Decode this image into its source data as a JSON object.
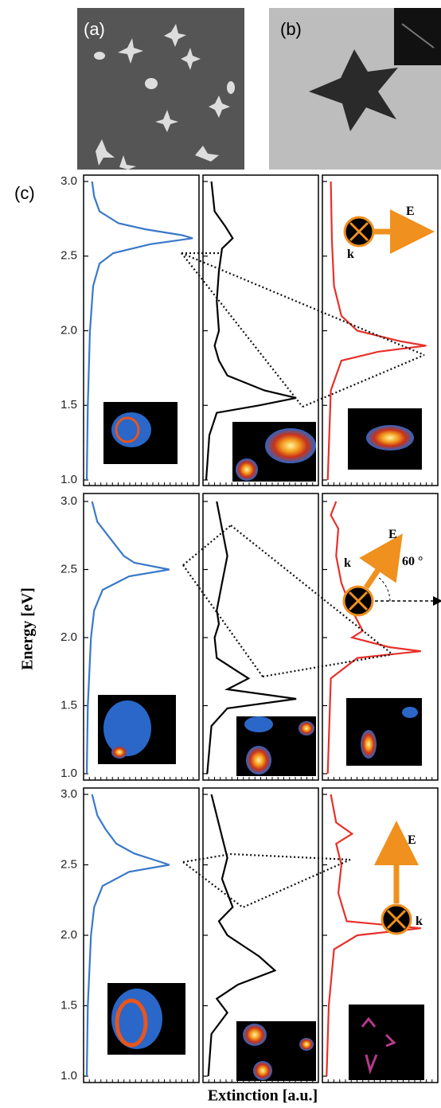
{
  "panel_labels": [
    "(a)",
    "(b)",
    "(c)"
  ],
  "chart_data": {
    "type": "line",
    "xlabel": "Extinction [a.u.]",
    "ylabel": "Energy [eV]",
    "xlim": [
      0,
      1
    ],
    "ylim": [
      1,
      3
    ],
    "yticks": [
      {
        "value": 3,
        "label": "3.0"
      },
      {
        "value": 2.5,
        "label": "2.5"
      },
      {
        "value": 2,
        "label": "2.0"
      },
      {
        "value": 1.5,
        "label": "1.5"
      },
      {
        "value": 1,
        "label": "1.0"
      }
    ],
    "rows": [
      {
        "annotations": [
          "E",
          "k"
        ],
        "panels": [
          {
            "color": "#3a78c9",
            "energy": [
              3.0,
              2.9,
              2.8,
              2.72,
              2.68,
              2.64,
              2.62,
              2.58,
              2.52,
              2.45,
              2.3,
              2.0,
              1.5,
              1.0
            ],
            "extinction": [
              0.05,
              0.07,
              0.12,
              0.3,
              0.55,
              0.9,
              1.0,
              0.6,
              0.25,
              0.12,
              0.06,
              0.03,
              0.01,
              0.0
            ]
          },
          {
            "color": "#000000",
            "energy": [
              3.0,
              2.8,
              2.7,
              2.62,
              2.55,
              2.4,
              2.2,
              2.0,
              1.9,
              1.8,
              1.7,
              1.6,
              1.55,
              1.5,
              1.45,
              1.3,
              1.0
            ],
            "extinction": [
              0.05,
              0.08,
              0.18,
              0.25,
              0.15,
              0.12,
              0.1,
              0.12,
              0.08,
              0.12,
              0.2,
              0.55,
              0.85,
              0.5,
              0.1,
              0.03,
              0.0
            ]
          },
          {
            "color": "#e8302a",
            "energy": [
              3.0,
              2.6,
              2.3,
              2.1,
              2.0,
              1.93,
              1.9,
              1.86,
              1.8,
              1.6,
              1.0
            ],
            "extinction": [
              0.05,
              0.06,
              0.08,
              0.15,
              0.3,
              0.7,
              0.95,
              0.5,
              0.15,
              0.05,
              0.02
            ]
          }
        ]
      },
      {
        "annotations": [
          "E",
          "k",
          "60 °"
        ],
        "panels": [
          {
            "color": "#3a78c9",
            "energy": [
              3.0,
              2.85,
              2.75,
              2.65,
              2.6,
              2.55,
              2.5,
              2.45,
              2.35,
              2.2,
              2.0,
              1.5,
              1.0
            ],
            "extinction": [
              0.05,
              0.1,
              0.2,
              0.3,
              0.35,
              0.45,
              0.78,
              0.4,
              0.15,
              0.07,
              0.04,
              0.01,
              0.0
            ]
          },
          {
            "color": "#000000",
            "energy": [
              3.0,
              2.8,
              2.6,
              2.4,
              2.2,
              2.1,
              2.0,
              1.85,
              1.75,
              1.7,
              1.62,
              1.55,
              1.48,
              1.35,
              1.0
            ],
            "extinction": [
              0.1,
              0.15,
              0.2,
              0.15,
              0.1,
              0.12,
              0.08,
              0.1,
              0.3,
              0.4,
              0.2,
              0.85,
              0.2,
              0.05,
              0.01
            ]
          },
          {
            "color": "#e8302a",
            "energy": [
              3.0,
              2.9,
              2.8,
              2.6,
              2.4,
              2.2,
              2.05,
              2.0,
              1.93,
              1.9,
              1.85,
              1.7,
              1.0
            ],
            "extinction": [
              0.1,
              0.05,
              0.12,
              0.1,
              0.15,
              0.25,
              0.35,
              0.25,
              0.6,
              0.9,
              0.3,
              0.05,
              0.02
            ]
          }
        ]
      },
      {
        "annotations": [
          "E",
          "k"
        ],
        "panels": [
          {
            "color": "#3a78c9",
            "energy": [
              3.0,
              2.85,
              2.75,
              2.65,
              2.58,
              2.52,
              2.5,
              2.45,
              2.35,
              2.2,
              2.0,
              1.5,
              1.0
            ],
            "extinction": [
              0.05,
              0.1,
              0.18,
              0.28,
              0.45,
              0.7,
              0.78,
              0.4,
              0.15,
              0.07,
              0.04,
              0.01,
              0.0
            ]
          },
          {
            "color": "#000000",
            "energy": [
              3.0,
              2.7,
              2.55,
              2.4,
              2.2,
              2.1,
              2.0,
              1.85,
              1.75,
              1.65,
              1.55,
              1.45,
              1.3,
              1.0
            ],
            "extinction": [
              0.05,
              0.15,
              0.2,
              0.15,
              0.25,
              0.12,
              0.2,
              0.5,
              0.65,
              0.3,
              0.1,
              0.2,
              0.05,
              0.02
            ]
          },
          {
            "color": "#e8302a",
            "energy": [
              3.0,
              2.8,
              2.72,
              2.65,
              2.5,
              2.3,
              2.1,
              2.05,
              2.0,
              1.9,
              1.5,
              1.0
            ],
            "extinction": [
              0.05,
              0.1,
              0.25,
              0.1,
              0.15,
              0.12,
              0.2,
              0.9,
              0.3,
              0.08,
              0.03,
              0.01
            ]
          }
        ]
      }
    ]
  }
}
